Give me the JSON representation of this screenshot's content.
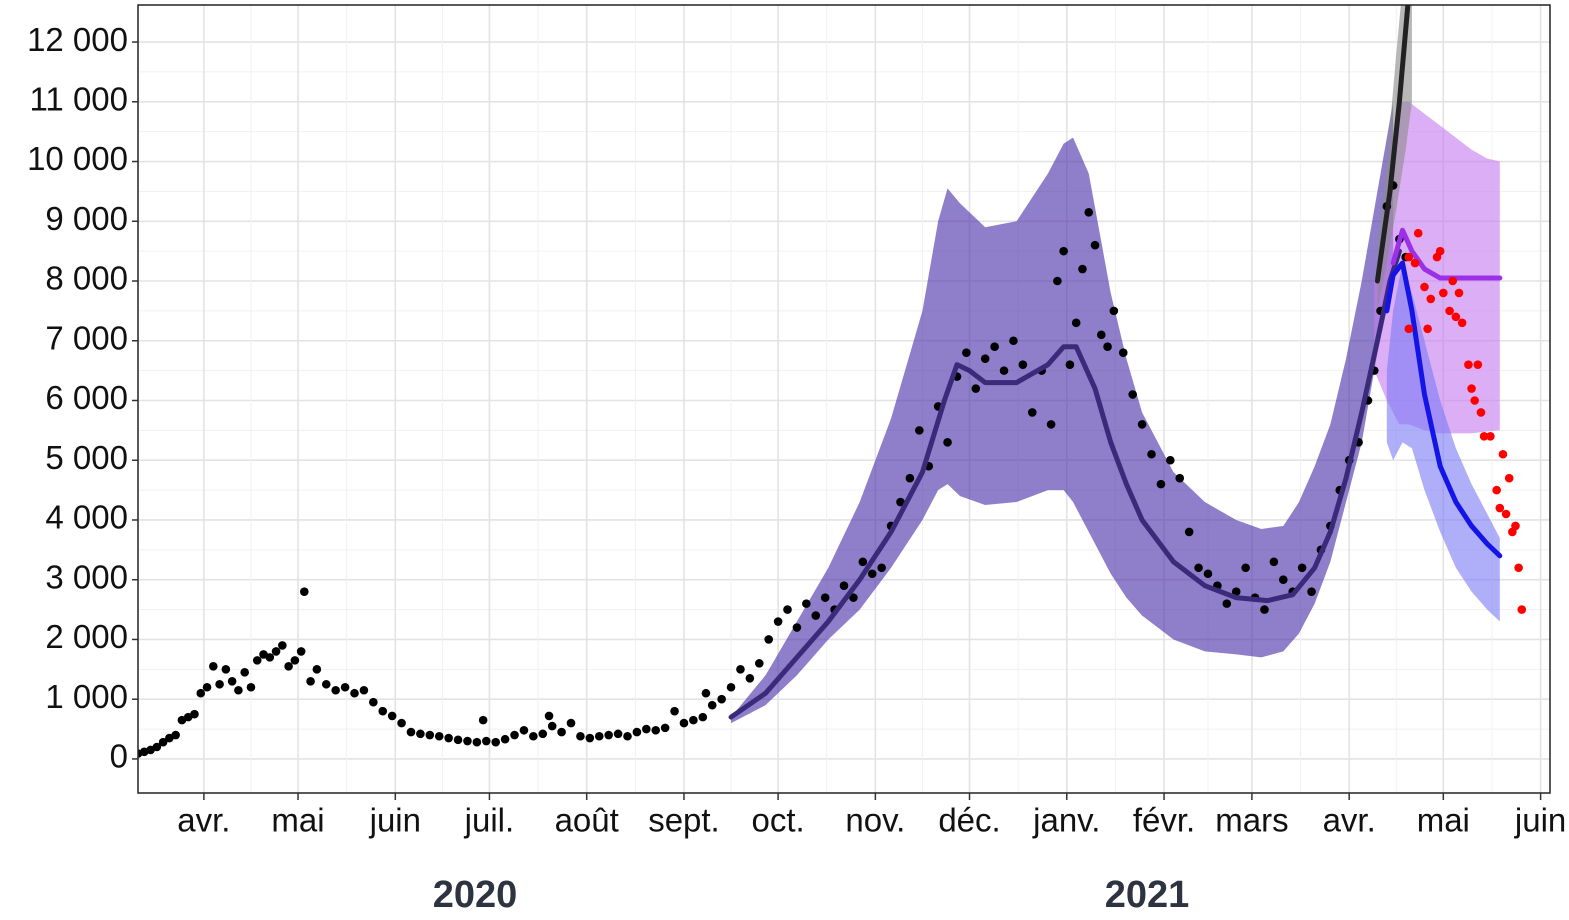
{
  "chart_data": {
    "type": "line",
    "xlim": [
      10,
      460
    ],
    "ylim": [
      -570,
      12620
    ],
    "grid": true,
    "yticks": [
      0,
      {
        "value": 1000,
        "label": "1 000"
      },
      {
        "value": 2000,
        "label": "2 000"
      },
      {
        "value": 3000,
        "label": "3 000"
      },
      {
        "value": 4000,
        "label": "4 000"
      },
      {
        "value": 5000,
        "label": "5 000"
      },
      {
        "value": 6000,
        "label": "6 000"
      },
      {
        "value": 7000,
        "label": "7 000"
      },
      {
        "value": 8000,
        "label": "8 000"
      },
      {
        "value": 9000,
        "label": "9 000"
      },
      {
        "value": 10000,
        "label": "10 000"
      },
      {
        "value": 11000,
        "label": "11 000"
      },
      {
        "value": 12000,
        "label": "12 000"
      }
    ],
    "xticks": [
      {
        "value": 31,
        "label": "avr."
      },
      {
        "value": 61,
        "label": "mai"
      },
      {
        "value": 92,
        "label": "juin"
      },
      {
        "value": 122,
        "label": "juil."
      },
      {
        "value": 153,
        "label": "août"
      },
      {
        "value": 184,
        "label": "sept."
      },
      {
        "value": 214,
        "label": "oct."
      },
      {
        "value": 245,
        "label": "nov."
      },
      {
        "value": 275,
        "label": "déc."
      },
      {
        "value": 306,
        "label": "janv."
      },
      {
        "value": 337,
        "label": "févr."
      },
      {
        "value": 365,
        "label": "mars"
      },
      {
        "value": 396,
        "label": "avr."
      },
      {
        "value": 426,
        "label": "mai"
      },
      {
        "value": 457,
        "label": "juin"
      }
    ],
    "year_labels": [
      "2020",
      "2021"
    ],
    "series": [
      {
        "kind": "band",
        "color": "#4b2fa8",
        "x": [
          199,
          210,
          220,
          230,
          240,
          250,
          260,
          265,
          268,
          272,
          280,
          290,
          300,
          305,
          308,
          313,
          320,
          325,
          330,
          340,
          350,
          360,
          368,
          375,
          380,
          385,
          390,
          395,
          400,
          405,
          410
        ],
        "upper": [
          700,
          1400,
          2300,
          3200,
          4300,
          5700,
          7500,
          9000,
          9550,
          9300,
          8900,
          9000,
          9800,
          10300,
          10400,
          9800,
          7800,
          6700,
          5800,
          4800,
          4300,
          4000,
          3850,
          3900,
          4300,
          4900,
          5600,
          6700,
          8000,
          9500,
          11000
        ],
        "lower": [
          600,
          900,
          1400,
          2000,
          2500,
          3200,
          4000,
          4500,
          4600,
          4400,
          4250,
          4300,
          4500,
          4500,
          4300,
          3800,
          3100,
          2700,
          2400,
          2000,
          1800,
          1750,
          1700,
          1800,
          2100,
          2600,
          3300,
          4300,
          5300,
          6800,
          8000
        ]
      },
      {
        "kind": "band",
        "color": "#c77df0",
        "x": [
          404,
          408,
          412,
          415,
          420,
          425,
          430,
          435,
          440,
          444
        ],
        "upper": [
          8000,
          9000,
          11000,
          11000,
          10800,
          10600,
          10400,
          10200,
          10050,
          10000
        ],
        "lower": [
          6500,
          6000,
          5600,
          5600,
          5500,
          5450,
          5450,
          5450,
          5480,
          5500
        ]
      },
      {
        "kind": "band",
        "color": "#7d7df5",
        "x": [
          408,
          410,
          413,
          416,
          420,
          425,
          430,
          435,
          440,
          444
        ],
        "upper": [
          6500,
          7500,
          8300,
          7800,
          7000,
          6000,
          5200,
          4600,
          4100,
          3700
        ],
        "lower": [
          5300,
          5000,
          5300,
          5200,
          4500,
          3800,
          3200,
          2800,
          2500,
          2300
        ]
      },
      {
        "kind": "band",
        "color": "#8c8c8c",
        "x": [
          405,
          408,
          411,
          414,
          416
        ],
        "upper": [
          8500,
          10000,
          11800,
          13500,
          14500
        ],
        "lower": [
          7500,
          8300,
          9200,
          10200,
          11000
        ]
      },
      {
        "kind": "points",
        "color": "#000000",
        "x": [
          10,
          12,
          14,
          16,
          18,
          20,
          22,
          24,
          26,
          28,
          30,
          32,
          34,
          36,
          38,
          40,
          42,
          44,
          46,
          48,
          50,
          52,
          54,
          56,
          58,
          60,
          62,
          63,
          65,
          67,
          70,
          73,
          76,
          79,
          82,
          85,
          88,
          91,
          94,
          97,
          100,
          103,
          106,
          109,
          112,
          115,
          118,
          120,
          121,
          124,
          127,
          130,
          133,
          136,
          139,
          141,
          142,
          145,
          148,
          151,
          154,
          157,
          160,
          163,
          166,
          169,
          172,
          175,
          178,
          181,
          184,
          187,
          190,
          191,
          193,
          196,
          199,
          202,
          205,
          208,
          211,
          214,
          217,
          220,
          223,
          226,
          229,
          232,
          235,
          238,
          241,
          244,
          247,
          250,
          253,
          256,
          259,
          262,
          265,
          268,
          271,
          274,
          277,
          280,
          283,
          286,
          289,
          292,
          295,
          298,
          301,
          303,
          305,
          307,
          309,
          311,
          313,
          315,
          317,
          319,
          321,
          324,
          327,
          330,
          333,
          336,
          339,
          342,
          345,
          348,
          351,
          354,
          357,
          360,
          363,
          366,
          369,
          372,
          375,
          378,
          381,
          384,
          387,
          390,
          393,
          396,
          399,
          402,
          404,
          406,
          408,
          410,
          412,
          414
        ],
        "values": [
          90,
          120,
          150,
          200,
          280,
          350,
          400,
          650,
          700,
          750,
          1100,
          1200,
          1550,
          1250,
          1500,
          1300,
          1150,
          1450,
          1200,
          1650,
          1750,
          1700,
          1800,
          1900,
          1550,
          1650,
          1800,
          2800,
          1300,
          1500,
          1250,
          1150,
          1200,
          1100,
          1150,
          950,
          800,
          720,
          600,
          450,
          420,
          400,
          380,
          350,
          320,
          300,
          280,
          650,
          300,
          280,
          330,
          400,
          480,
          380,
          420,
          720,
          550,
          450,
          600,
          380,
          350,
          380,
          400,
          420,
          380,
          450,
          500,
          480,
          520,
          800,
          600,
          650,
          700,
          1100,
          900,
          1000,
          1200,
          1500,
          1350,
          1600,
          2000,
          2300,
          2500,
          2200,
          2600,
          2400,
          2700,
          2500,
          2900,
          2700,
          3300,
          3100,
          3200,
          3900,
          4300,
          4700,
          5500,
          4900,
          5900,
          5300,
          6400,
          6800,
          6200,
          6700,
          6900,
          6500,
          7000,
          6600,
          5800,
          6500,
          5600,
          8000,
          8500,
          6600,
          7300,
          8200,
          9150,
          8600,
          7100,
          6900,
          7500,
          6800,
          6100,
          5600,
          5100,
          4600,
          5000,
          4700,
          3800,
          3200,
          3100,
          2900,
          2600,
          2800,
          3200,
          2700,
          2500,
          3300,
          3000,
          2800,
          3200,
          2800,
          3500,
          3900,
          4500,
          5000,
          5300,
          6000,
          6500,
          7500,
          9250,
          9600,
          8700,
          8400
        ]
      },
      {
        "kind": "line",
        "color": "#3a2a7a",
        "x": [
          199,
          210,
          220,
          230,
          240,
          250,
          260,
          267,
          271,
          275,
          280,
          290,
          300,
          305,
          309,
          315,
          320,
          325,
          330,
          340,
          350,
          360,
          370,
          378,
          385,
          390,
          395,
          400,
          405,
          409,
          412
        ],
        "values": [
          700,
          1100,
          1700,
          2300,
          3000,
          3800,
          4800,
          6000,
          6600,
          6500,
          6300,
          6300,
          6600,
          6900,
          6900,
          6200,
          5300,
          4600,
          4000,
          3300,
          2900,
          2700,
          2650,
          2750,
          3200,
          3800,
          4700,
          5800,
          7000,
          8000,
          8500
        ]
      },
      {
        "kind": "line",
        "color": "#1414e6",
        "x": [
          408,
          410,
          413,
          416,
          420,
          425,
          430,
          435,
          440,
          444
        ],
        "values": [
          7500,
          8100,
          8300,
          7500,
          6100,
          4900,
          4300,
          3900,
          3600,
          3400
        ]
      },
      {
        "kind": "line",
        "color": "#9b30e6",
        "x": [
          410,
          413,
          416,
          420,
          425,
          430,
          435,
          440,
          444
        ],
        "values": [
          8300,
          8850,
          8500,
          8200,
          8050,
          8050,
          8050,
          8050,
          8050
        ]
      },
      {
        "kind": "line",
        "color": "#222222",
        "x": [
          405,
          409,
          412,
          415
        ],
        "values": [
          8000,
          9500,
          11000,
          12800
        ]
      },
      {
        "kind": "points",
        "color": "#ff0000",
        "x": [
          415,
          415,
          417,
          418,
          420,
          421,
          422,
          424,
          425,
          426,
          428,
          429,
          430,
          431,
          432,
          434,
          435,
          436,
          437,
          438,
          439,
          441,
          443,
          444,
          445,
          446,
          447,
          448,
          449,
          450,
          451
        ],
        "values": [
          7200,
          8400,
          8300,
          8800,
          7900,
          7200,
          7700,
          8400,
          8500,
          7800,
          7500,
          8000,
          7400,
          7800,
          7300,
          6600,
          6200,
          6000,
          6600,
          5800,
          5400,
          5400,
          4500,
          4200,
          5100,
          4100,
          4700,
          3800,
          3900,
          3200,
          2500
        ]
      }
    ]
  }
}
